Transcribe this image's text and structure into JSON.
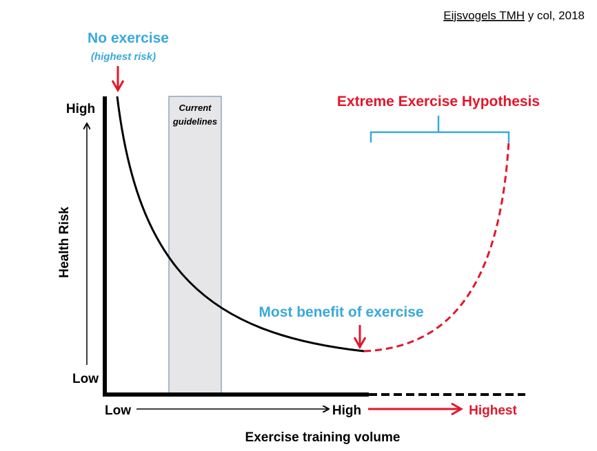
{
  "citation": {
    "authors": "Eijsvogels TMH",
    "rest": " y col, 2018"
  },
  "no_exercise": {
    "title": "No exercise",
    "subtitle": "(highest risk)"
  },
  "guidelines_box": {
    "line1": "Current",
    "line2": "guidelines"
  },
  "extreme_label": "Extreme Exercise Hypothesis",
  "most_benefit_label": "Most benefit of exercise",
  "y_axis": {
    "title": "Health Risk",
    "high": "High",
    "low": "Low"
  },
  "x_axis": {
    "title": "Exercise training volume",
    "low": "Low",
    "high": "High",
    "highest": "Highest"
  },
  "colors": {
    "blue": "#3aa8dc",
    "red": "#e3162b",
    "black": "#000000",
    "box_fill": "#e6e6e8",
    "box_stroke": "#8fa5bd"
  }
}
